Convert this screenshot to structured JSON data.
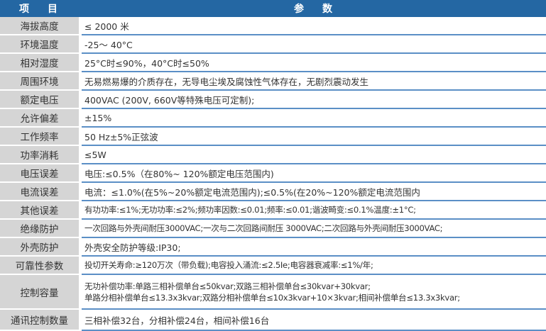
{
  "header": {
    "item_chars": [
      "项",
      "目"
    ],
    "param_chars": [
      "参",
      "数"
    ]
  },
  "colors": {
    "header": "#2467a3",
    "label_bg": "#d5d5d5",
    "divider": "#5b8fc6"
  },
  "rows": [
    {
      "label": "海拔高度",
      "value": "≤ 2000 米"
    },
    {
      "label": "环境温度",
      "value": "-25～ 40°C"
    },
    {
      "label": "相对湿度",
      "value": "25°C时≤90%，40°C时≤50%"
    },
    {
      "label": "周围环境",
      "value": "无易燃易爆的介质存在，无导电尘埃及腐蚀性气体存在，无剧烈震动发生"
    },
    {
      "label": "额定电压",
      "value": "400VAC (200V, 660V等特殊电压可定制);"
    },
    {
      "label": "允许偏差",
      "value": "±15%"
    },
    {
      "label": "工作频率",
      "value": "50 Hz±5%正弦波"
    },
    {
      "label": "功率消耗",
      "value": "≤5W"
    },
    {
      "label": "电压误差",
      "value": "电压:≤0.5%（在80%~ 120%额定电压范围内)"
    },
    {
      "label": "电流误差",
      "value": "电流：≤1.0%(在5%~20%额定电流范围内);≤0.5%(在20%~120%额定电流范围内"
    },
    {
      "label": "其他误差",
      "value": "有功功率:≤1%;无功功率:≤2%;频功率因数:≤0.01;频率:≤0.01;谐波畸变:≤0.1%温度:±1°C;"
    },
    {
      "label": "绝缘防护",
      "value": "一次回路与外壳间耐压3000VAC;一次与二次回路间耐压 3000VAC;二次回路与外壳间耐压3000VAC;"
    },
    {
      "label": "外壳防护",
      "value": "外壳安全防护等级:IP30;"
    },
    {
      "label": "可靠性参数",
      "value": "投切开关寿命:≥120万次（带负载);电容投入涌流:≤2.5Ie;电容器衰减率:≤1%/年;"
    },
    {
      "label": "控制容量",
      "value": "无功补偿功率:单路三相补偿单台≤50kvar;双路三相补偿单台≤30kvar+30kvar;",
      "value2": "单路分相补偿单台≤13.3x3kvar;双路分相补偿单台≤10x3kvar+10×3kvar;相间补偿单台≤13.3x3kvar;"
    },
    {
      "label": "通讯控制数量",
      "value": "三相补偿32台，分相补偿24台，相间补偿16台"
    }
  ]
}
